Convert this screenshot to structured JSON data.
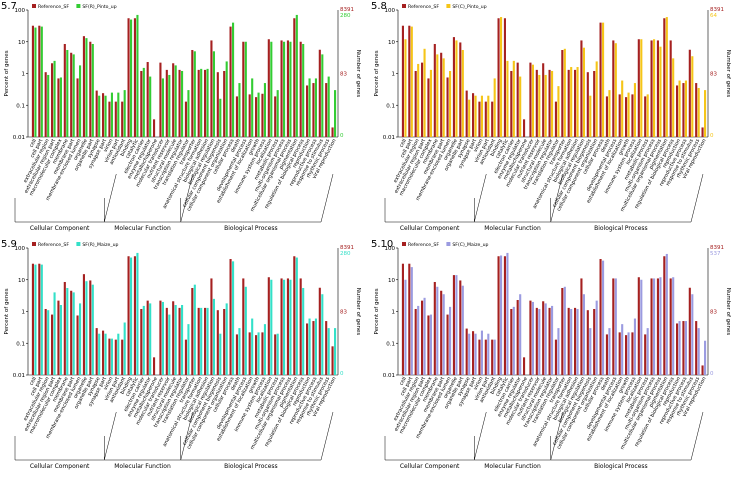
{
  "figure": {
    "categories": [
      "cell",
      "cell part",
      "extracellular region",
      "extracellular region part",
      "macromolecular complex",
      "membrane",
      "membrane part",
      "membrane-enclosed lumen",
      "organelle",
      "organelle part",
      "synapse",
      "synapse part",
      "virion",
      "virion part",
      "antioxidant",
      "binding",
      "catalytic",
      "electron carrier",
      "enzyme regulator",
      "metallochaperone",
      "molecular transducer",
      "nutrient reservoir",
      "structural molecule",
      "transcription regulator",
      "translation regulator",
      "transporter",
      "anatomical structure formation",
      "biological adhesion",
      "biological regulation",
      "cellular component biogenesis",
      "cellular component organization",
      "cellular process",
      "death",
      "developmental process",
      "establishment of localization",
      "growth",
      "immune system process",
      "localization",
      "metabolic process",
      "multi-organism process",
      "multicellular organismal process",
      "pigmentation",
      "regulation of biological process",
      "reproduction",
      "reproductive process",
      "response to stimulus",
      "rhythmic process",
      "viral reproduction"
    ],
    "groups": [
      {
        "label": "Cellular Component",
        "from": 0,
        "to": 13
      },
      {
        "label": "Molecular Function",
        "from": 14,
        "to": 25
      },
      {
        "label": "Biological Process",
        "from": 26,
        "to": 47
      }
    ],
    "y_axis_label": "Percent of genes",
    "y2_axis_label": "Number of genes",
    "y_ticks": [
      "100",
      "10",
      "1",
      "0.1",
      "0.01"
    ],
    "ylim": [
      0.01,
      100
    ],
    "reference_total": "8391",
    "reference_mid": "83",
    "zero_label": "0"
  },
  "chart_data": [
    {
      "type": "bar",
      "panel_label": "5.7",
      "title": "",
      "series": [
        {
          "name": "Reference_SF",
          "color": "#a52020",
          "values": [
            32,
            32,
            1.1,
            2.1,
            0.7,
            8.5,
            4.5,
            0.7,
            15,
            10,
            0.29,
            0.24,
            0.13,
            0.13,
            0.13,
            55,
            55,
            1.2,
            2.3,
            0.036,
            2.2,
            1.3,
            2.1,
            1.3,
            0.13,
            5.5,
            1.3,
            1.3,
            11,
            1.1,
            1.2,
            30,
            0.19,
            10,
            0.22,
            0.18,
            0.23,
            12,
            0.19,
            11,
            11,
            55,
            10,
            0.42,
            0.5,
            5.6,
            0.5,
            0.02
          ]
        },
        {
          "name": "SF(R)_Pinto_up",
          "color": "#33cc33",
          "values": [
            28,
            30,
            0.9,
            2.5,
            0.75,
            5.5,
            4,
            1.8,
            13,
            8.5,
            0.2,
            0.2,
            0.25,
            0.25,
            0.3,
            50,
            70,
            1.5,
            0.8,
            0,
            0.7,
            0.9,
            1.8,
            1.2,
            0.3,
            5,
            1.4,
            1.4,
            5,
            0.16,
            2.4,
            40,
            0.5,
            10,
            0.7,
            0.25,
            0.5,
            10,
            0.3,
            10,
            10,
            70,
            8.5,
            0.7,
            0.7,
            4,
            0.8,
            0.3
          ]
        }
      ],
      "n_labels": [
        "8391",
        "280"
      ],
      "categories_ref": "figure.categories"
    },
    {
      "type": "bar",
      "panel_label": "5.8",
      "title": "",
      "series": [
        {
          "name": "Reference_SF",
          "color": "#a52020",
          "values": [
            32,
            32,
            1.2,
            2.2,
            0.7,
            8.5,
            4.5,
            0.75,
            14,
            9.5,
            0.29,
            0.24,
            0.13,
            0.13,
            0.13,
            55,
            55,
            1.2,
            2.2,
            0.036,
            2.2,
            1.3,
            2.1,
            1.3,
            0.13,
            5.5,
            1.3,
            1.3,
            11,
            1.1,
            1.2,
            40,
            0.19,
            11,
            0.22,
            0.18,
            0.22,
            12,
            0.19,
            11,
            11,
            55,
            11,
            0.42,
            0.5,
            5.6,
            0.5,
            0.02
          ]
        },
        {
          "name": "SF(C)_Pinto_up",
          "color": "#f5c518",
          "values": [
            12,
            30,
            2,
            6,
            1.3,
            4,
            3,
            1.2,
            11,
            5.5,
            0.15,
            0.2,
            0.2,
            0.2,
            0.7,
            60,
            2.5,
            2.5,
            0.8,
            0,
            1.9,
            0.9,
            0.9,
            1.2,
            0.4,
            6,
            1.6,
            1.6,
            6.5,
            0.2,
            2.4,
            40,
            0.3,
            9,
            0.6,
            0.25,
            0.5,
            12,
            0.22,
            12,
            7,
            60,
            3,
            0.6,
            0.6,
            3.5,
            0.35,
            0.3
          ]
        }
      ],
      "n_labels": [
        "8391",
        "64"
      ]
    },
    {
      "type": "bar",
      "panel_label": "5.9",
      "title": "",
      "series": [
        {
          "name": "Reference_SF",
          "color": "#a52020",
          "values": [
            32,
            32,
            1.2,
            0.8,
            2.2,
            8.5,
            4.5,
            0.75,
            15,
            9.5,
            0.3,
            0.25,
            0.14,
            0.13,
            0.13,
            55,
            55,
            1.2,
            2.2,
            0.036,
            2.2,
            1.3,
            2.1,
            1.3,
            0.13,
            5.5,
            1.3,
            1.3,
            11,
            1.1,
            1.2,
            45,
            0.19,
            11,
            0.22,
            0.18,
            0.22,
            12,
            0.19,
            11,
            11,
            55,
            11,
            0.42,
            0.5,
            5.6,
            0.5,
            0.08
          ]
        },
        {
          "name": "SF(R)_Maize_up",
          "color": "#33e0c8",
          "values": [
            30,
            30,
            1.1,
            4,
            1.6,
            5.5,
            4,
            1.8,
            9,
            7,
            0.2,
            0.2,
            0.14,
            0.2,
            0.45,
            50,
            70,
            1.5,
            1.8,
            0,
            2,
            0.8,
            1.6,
            1.6,
            0.4,
            7,
            1.3,
            1.3,
            2.5,
            0.2,
            1.8,
            38,
            0.3,
            6,
            0.6,
            0.22,
            0.4,
            10,
            0.2,
            10,
            10,
            50,
            5.5,
            0.6,
            0.6,
            3.5,
            0.3,
            0.3
          ]
        }
      ],
      "n_labels": [
        "8391",
        "280"
      ]
    },
    {
      "type": "bar",
      "panel_label": "5.10",
      "title": "",
      "series": [
        {
          "name": "Reference_SF",
          "color": "#a52020",
          "values": [
            32,
            32,
            1.2,
            2.2,
            0.75,
            8.5,
            4.5,
            0.8,
            14,
            9.5,
            0.29,
            0.24,
            0.13,
            0.13,
            0.13,
            55,
            55,
            1.2,
            2.3,
            0.036,
            2.2,
            1.3,
            2.1,
            1.3,
            0.13,
            5.5,
            1.3,
            1.3,
            11,
            1.1,
            1.2,
            45,
            0.19,
            11,
            0.22,
            0.18,
            0.22,
            12,
            0.19,
            11,
            11,
            55,
            11,
            0.42,
            0.5,
            5.6,
            0.5,
            0.02
          ]
        },
        {
          "name": "SF(C)_Maize_up",
          "color": "#9b9be0",
          "values": [
            10,
            25,
            1.5,
            2.7,
            0.8,
            6,
            3.5,
            1.4,
            14,
            6.5,
            0.2,
            0.2,
            0.25,
            0.2,
            0.13,
            58,
            70,
            1.4,
            3.5,
            0,
            2,
            1.2,
            1.8,
            1.5,
            0.3,
            6,
            1.2,
            1.2,
            3.5,
            0.3,
            2.2,
            40,
            0.3,
            11,
            0.4,
            0.22,
            0.6,
            10,
            0.3,
            11,
            12,
            65,
            12,
            0.5,
            0.5,
            3.5,
            0.3,
            0.12
          ]
        }
      ],
      "n_labels": [
        "8391",
        "537"
      ]
    }
  ]
}
